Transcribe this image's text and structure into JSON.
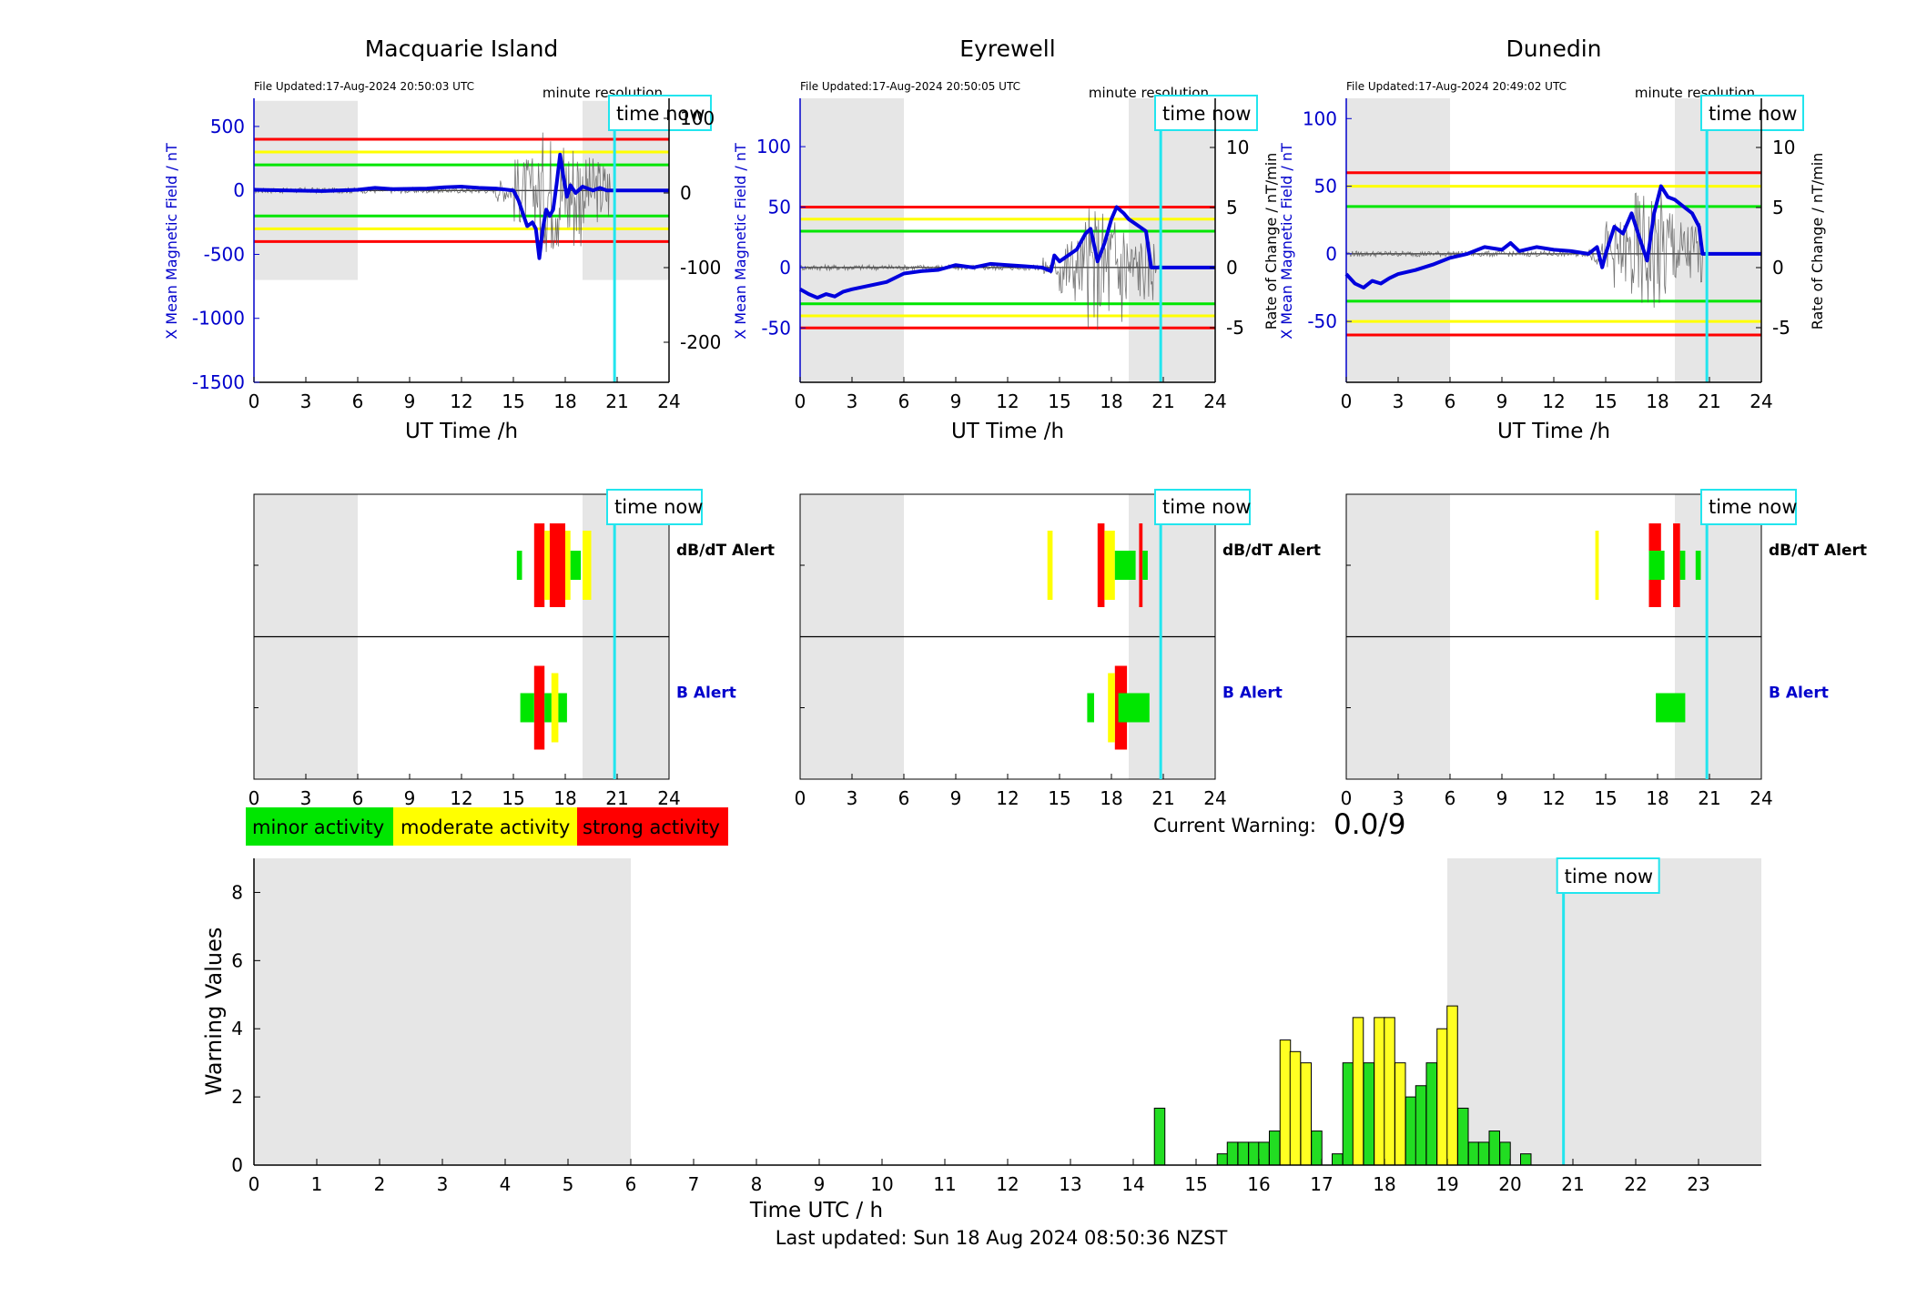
{
  "theme": {
    "shade": "#e6e6e6",
    "mean_line": "#0000dd",
    "axis_blue": "#0000cc",
    "raw_line": "#555555",
    "timenow": "#22e5ee",
    "minor": "#00e600",
    "moderate": "#ffff00",
    "strong": "#ff0000",
    "bar_minor": "#22dd22",
    "bar_moderate": "#ffff22"
  },
  "time_now_label": "time now",
  "minute_resolution_label": "minute resolution",
  "x_ticks_panel": [
    "0",
    "3",
    "6",
    "9",
    "12",
    "15",
    "18",
    "21",
    "24"
  ],
  "panel_xlabel": "UT Time /h",
  "stations": [
    {
      "name": "Macquarie Island",
      "file_updated": "File Updated:17-Aug-2024 20:50:03 UTC",
      "ylabel_left": "X Mean Magnetic Field / nT",
      "ylabel_right": "Rate of Change / nT/min",
      "left_ylim": [
        -1500,
        720
      ],
      "left_ticks": [
        "500",
        "0",
        "-500",
        "-1000",
        "-1500"
      ],
      "right_ticks": [
        "100",
        "0",
        "-100",
        "-200"
      ],
      "threshold_lines": {
        "strong": 400,
        "moderate": 300,
        "minor": 200
      },
      "shade_left_h": [
        0,
        6
      ],
      "shade_right_h": [
        19,
        24
      ],
      "shade_ylim": [
        -700,
        700
      ],
      "time_now_h": 20.85,
      "mean_series": [
        [
          0,
          5
        ],
        [
          2,
          0
        ],
        [
          4,
          -5
        ],
        [
          6,
          5
        ],
        [
          7,
          20
        ],
        [
          8,
          10
        ],
        [
          10,
          15
        ],
        [
          11,
          25
        ],
        [
          12,
          30
        ],
        [
          13,
          20
        ],
        [
          14,
          15
        ],
        [
          15,
          0
        ],
        [
          15.3,
          -80
        ],
        [
          15.6,
          -200
        ],
        [
          15.8,
          -280
        ],
        [
          16.1,
          -250
        ],
        [
          16.3,
          -300
        ],
        [
          16.5,
          -530
        ],
        [
          16.7,
          -300
        ],
        [
          16.9,
          -150
        ],
        [
          17.1,
          -200
        ],
        [
          17.3,
          -150
        ],
        [
          17.5,
          50
        ],
        [
          17.7,
          280
        ],
        [
          17.9,
          100
        ],
        [
          18.1,
          -50
        ],
        [
          18.3,
          40
        ],
        [
          18.6,
          -20
        ],
        [
          19,
          30
        ],
        [
          19.6,
          0
        ],
        [
          20,
          20
        ],
        [
          20.4,
          0
        ],
        [
          20.85,
          0
        ],
        [
          24,
          0
        ]
      ],
      "alert_dbdt": [
        [
          15.2,
          15.5,
          "minor"
        ],
        [
          16.2,
          16.8,
          "strong"
        ],
        [
          16.8,
          17.1,
          "moderate"
        ],
        [
          17.1,
          18.0,
          "strong"
        ],
        [
          18.0,
          18.3,
          "moderate"
        ],
        [
          18.3,
          18.9,
          "minor"
        ],
        [
          19.0,
          19.5,
          "moderate"
        ]
      ],
      "alert_b": [
        [
          15.4,
          16.2,
          "minor"
        ],
        [
          16.2,
          16.8,
          "strong"
        ],
        [
          16.8,
          17.2,
          "minor"
        ],
        [
          17.2,
          17.6,
          "moderate"
        ],
        [
          17.6,
          18.1,
          "minor"
        ]
      ]
    },
    {
      "name": "Eyrewell",
      "file_updated": "File Updated:17-Aug-2024 20:50:05 UTC",
      "ylabel_left": "X Mean Magnetic Field / nT",
      "ylabel_right": "Rate of Change / nT/min",
      "left_ylim": [
        -95,
        140
      ],
      "left_ticks": [
        "100",
        "50",
        "0",
        "-50"
      ],
      "right_ticks": [
        "10",
        "5",
        "0",
        "-5"
      ],
      "threshold_lines": {
        "strong": 50,
        "moderate": 40,
        "minor": 30
      },
      "shade_left_h": [
        0,
        6
      ],
      "shade_right_h": [
        19,
        24
      ],
      "shade_ylim": [
        -95,
        140
      ],
      "time_now_h": 20.85,
      "mean_series": [
        [
          0,
          -18
        ],
        [
          0.5,
          -22
        ],
        [
          1,
          -25
        ],
        [
          1.5,
          -22
        ],
        [
          2,
          -24
        ],
        [
          2.5,
          -20
        ],
        [
          3,
          -18
        ],
        [
          4,
          -15
        ],
        [
          5,
          -12
        ],
        [
          6,
          -5
        ],
        [
          7,
          -3
        ],
        [
          8,
          -2
        ],
        [
          9,
          2
        ],
        [
          10,
          0
        ],
        [
          11,
          3
        ],
        [
          12,
          2
        ],
        [
          13,
          1
        ],
        [
          14,
          0
        ],
        [
          14.5,
          -3
        ],
        [
          14.7,
          10
        ],
        [
          15,
          5
        ],
        [
          15.5,
          10
        ],
        [
          16,
          15
        ],
        [
          16.5,
          28
        ],
        [
          16.8,
          32
        ],
        [
          17.2,
          5
        ],
        [
          17.6,
          20
        ],
        [
          18,
          40
        ],
        [
          18.3,
          50
        ],
        [
          18.7,
          45
        ],
        [
          19,
          40
        ],
        [
          19.5,
          35
        ],
        [
          20,
          30
        ],
        [
          20.3,
          0
        ],
        [
          20.85,
          0
        ],
        [
          24,
          0
        ]
      ],
      "alert_dbdt": [
        [
          14.3,
          14.6,
          "moderate"
        ],
        [
          17.2,
          17.6,
          "strong"
        ],
        [
          17.6,
          18.2,
          "moderate"
        ],
        [
          18.2,
          18.5,
          "minor"
        ],
        [
          18.5,
          19.4,
          "minor"
        ],
        [
          19.6,
          19.8,
          "strong"
        ],
        [
          19.8,
          20.1,
          "minor"
        ]
      ],
      "alert_b": [
        [
          16.6,
          17.0,
          "minor"
        ],
        [
          17.8,
          18.2,
          "moderate"
        ],
        [
          18.2,
          18.9,
          "strong"
        ],
        [
          18.4,
          20.2,
          "minor"
        ]
      ]
    },
    {
      "name": "Dunedin",
      "file_updated": "File Updated:17-Aug-2024 20:49:02 UTC",
      "ylabel_left": "X Mean Magnetic Field / nT",
      "ylabel_right": "Rate of Change / nT/min",
      "left_ylim": [
        -95,
        115
      ],
      "left_ticks": [
        "100",
        "50",
        "0",
        "-50"
      ],
      "right_ticks": [
        "10",
        "5",
        "0",
        "-5"
      ],
      "threshold_lines": {
        "strong": 60,
        "moderate": 50,
        "minor": 35
      },
      "shade_left_h": [
        0,
        6
      ],
      "shade_right_h": [
        19,
        24
      ],
      "shade_ylim": [
        -95,
        115
      ],
      "time_now_h": 20.85,
      "mean_series": [
        [
          0,
          -15
        ],
        [
          0.5,
          -22
        ],
        [
          1,
          -25
        ],
        [
          1.5,
          -20
        ],
        [
          2,
          -22
        ],
        [
          2.5,
          -18
        ],
        [
          3,
          -15
        ],
        [
          4,
          -12
        ],
        [
          5,
          -8
        ],
        [
          6,
          -3
        ],
        [
          7,
          0
        ],
        [
          8,
          5
        ],
        [
          9,
          3
        ],
        [
          9.5,
          8
        ],
        [
          10,
          2
        ],
        [
          11,
          5
        ],
        [
          12,
          3
        ],
        [
          13,
          2
        ],
        [
          14,
          0
        ],
        [
          14.5,
          5
        ],
        [
          14.8,
          -10
        ],
        [
          15,
          0
        ],
        [
          15.5,
          20
        ],
        [
          16,
          15
        ],
        [
          16.5,
          30
        ],
        [
          17,
          10
        ],
        [
          17.4,
          -5
        ],
        [
          17.8,
          30
        ],
        [
          18.2,
          50
        ],
        [
          18.6,
          42
        ],
        [
          19,
          40
        ],
        [
          19.5,
          35
        ],
        [
          20,
          30
        ],
        [
          20.4,
          20
        ],
        [
          20.6,
          0
        ],
        [
          24,
          0
        ]
      ],
      "alert_dbdt": [
        [
          14.4,
          14.6,
          "moderate"
        ],
        [
          17.5,
          18.2,
          "strong"
        ],
        [
          17.5,
          18.4,
          "minor"
        ],
        [
          18.9,
          19.3,
          "strong"
        ],
        [
          19.3,
          19.6,
          "minor"
        ],
        [
          20.2,
          20.5,
          "minor"
        ]
      ],
      "alert_b": [
        [
          17.9,
          19.6,
          "minor"
        ]
      ]
    }
  ],
  "alert_labels": {
    "dbdt": "dB/dT Alert",
    "b": "B Alert"
  },
  "legend": [
    {
      "label": "minor activity",
      "level": "minor"
    },
    {
      "label": "moderate activity",
      "level": "moderate"
    },
    {
      "label": "strong activity",
      "level": "strong"
    }
  ],
  "current_warning": {
    "label": "Current Warning:",
    "value": "0.0/9"
  },
  "chart_data": [
    {
      "type": "bar",
      "title": "",
      "xlabel": "Time UTC / h",
      "ylabel": "Warning Values",
      "xlim": [
        0,
        24
      ],
      "ylim": [
        0,
        9
      ],
      "x_ticks": [
        "0",
        "1",
        "2",
        "3",
        "4",
        "5",
        "6",
        "7",
        "8",
        "9",
        "10",
        "11",
        "12",
        "13",
        "14",
        "15",
        "16",
        "17",
        "18",
        "19",
        "20",
        "21",
        "22",
        "23"
      ],
      "y_ticks": [
        "0",
        "2",
        "4",
        "6",
        "8"
      ],
      "time_now_h": 20.85,
      "shaded_regions_h": [
        [
          0,
          6
        ],
        [
          19,
          24
        ]
      ],
      "bar_width_h": 0.1667,
      "x": [
        14.42,
        15.42,
        15.58,
        15.75,
        15.92,
        16.08,
        16.25,
        16.42,
        16.58,
        16.75,
        16.92,
        17.25,
        17.42,
        17.58,
        17.75,
        17.92,
        18.08,
        18.25,
        18.42,
        18.58,
        18.75,
        18.92,
        19.08,
        19.25,
        19.42,
        19.58,
        19.75,
        19.92,
        20.25
      ],
      "values": [
        1.67,
        0.33,
        0.67,
        0.67,
        0.67,
        0.67,
        1.0,
        3.67,
        3.33,
        3.0,
        1.0,
        0.33,
        3.0,
        4.33,
        3.0,
        4.33,
        4.33,
        3.0,
        2.0,
        2.33,
        3.0,
        4.0,
        4.67,
        1.67,
        0.67,
        0.67,
        1.0,
        0.67,
        0.33
      ],
      "levels": [
        "minor",
        "minor",
        "minor",
        "minor",
        "minor",
        "minor",
        "minor",
        "moderate",
        "moderate",
        "moderate",
        "minor",
        "minor",
        "minor",
        "moderate",
        "minor",
        "moderate",
        "moderate",
        "moderate",
        "minor",
        "minor",
        "minor",
        "moderate",
        "moderate",
        "minor",
        "minor",
        "minor",
        "minor",
        "minor",
        "minor"
      ]
    }
  ],
  "footer": {
    "last_updated": "Last updated: Sun 18 Aug 2024 08:50:36 NZST"
  }
}
